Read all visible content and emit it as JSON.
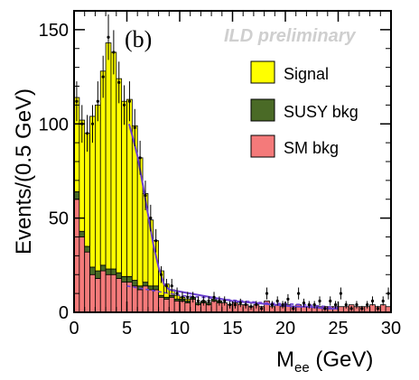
{
  "chart_data": {
    "type": "histogram",
    "panel_label": "(b)",
    "watermark": "ILD preliminary",
    "xlabel_main": "M",
    "xlabel_sub": "ee",
    "xlabel_unit": " (GeV)",
    "ylabel": "Events/(0.5 GeV)",
    "xlim": [
      0,
      30
    ],
    "ylim": [
      0,
      160
    ],
    "x_ticks": [
      0,
      5,
      10,
      15,
      20,
      25,
      30
    ],
    "x_tick_labels": [
      "0",
      "5",
      "10",
      "15",
      "20",
      "25",
      "30"
    ],
    "y_ticks": [
      0,
      50,
      100,
      150
    ],
    "y_tick_labels": [
      "0",
      "50",
      "100",
      "150"
    ],
    "bin_width": 0.5,
    "bin_starts": [
      0,
      0.5,
      1,
      1.5,
      2,
      2.5,
      3,
      3.5,
      4,
      4.5,
      5,
      5.5,
      6,
      6.5,
      7,
      7.5,
      8,
      8.5,
      9,
      9.5,
      10,
      10.5,
      11,
      11.5,
      12,
      12.5,
      13,
      13.5,
      14,
      14.5,
      15,
      15.5,
      16,
      16.5,
      17,
      17.5,
      18,
      18.5,
      19,
      19.5,
      20,
      20.5,
      21,
      21.5,
      22,
      22.5,
      23,
      23.5,
      24,
      24.5,
      25,
      25.5,
      26,
      26.5,
      27,
      27.5,
      28,
      28.5,
      29,
      29.5
    ],
    "series": [
      {
        "name": "SM bkg",
        "color": "#f47a7a",
        "values": [
          60,
          40,
          32,
          20,
          18,
          22,
          20,
          20,
          18,
          16,
          16,
          14,
          12,
          14,
          12,
          12,
          8,
          7,
          8,
          6,
          6,
          5,
          7,
          4,
          5,
          4,
          6,
          5,
          5,
          4,
          5,
          4,
          4,
          3,
          4,
          3,
          6,
          3,
          4,
          3,
          4,
          3,
          4,
          3,
          3,
          3,
          3,
          3,
          3,
          3,
          3,
          3,
          4,
          3,
          3,
          3,
          4,
          3,
          4,
          3
        ]
      },
      {
        "name": "SUSY bkg",
        "color": "#4a6a26",
        "values": [
          4,
          3,
          3,
          4,
          4,
          3,
          3,
          3,
          3,
          3,
          3,
          3,
          2,
          2,
          2,
          2,
          1,
          1,
          1,
          1,
          1,
          1,
          1,
          1,
          1,
          1,
          1,
          1,
          0,
          0,
          0,
          0,
          0,
          0,
          0,
          0,
          0,
          0,
          0,
          0,
          0,
          0,
          0,
          0,
          0,
          0,
          0,
          0,
          0,
          0,
          0,
          0,
          0,
          0,
          0,
          0,
          0,
          0,
          0,
          0
        ]
      },
      {
        "name": "Signal",
        "color": "#ffff00",
        "values": [
          50,
          59,
          60,
          80,
          88,
          103,
          120,
          115,
          103,
          93,
          94,
          82,
          68,
          47,
          35,
          24,
          13,
          7,
          3,
          2,
          1,
          1,
          0,
          0,
          0,
          0,
          0,
          0,
          0,
          0,
          0,
          0,
          0,
          0,
          0,
          0,
          0,
          0,
          0,
          0,
          0,
          0,
          0,
          0,
          0,
          0,
          0,
          0,
          0,
          0,
          0,
          0,
          0,
          0,
          0,
          0,
          0,
          0,
          0,
          0
        ]
      }
    ],
    "data_points": [
      112,
      100,
      95,
      100,
      112,
      125,
      146,
      138,
      122,
      110,
      112,
      98,
      82,
      62,
      50,
      38,
      20,
      14,
      14,
      10,
      8,
      8,
      8,
      6,
      6,
      6,
      8,
      6,
      6,
      4,
      4,
      5,
      4,
      3,
      4,
      2,
      10,
      4,
      6,
      4,
      7,
      2,
      10,
      5,
      4,
      4,
      6,
      2,
      6,
      4,
      10,
      4,
      2,
      4,
      2,
      4,
      6,
      2,
      6,
      10
    ],
    "fit_curve": {
      "name": "fit",
      "color": "#6a3fd0",
      "x": [
        5.2,
        5.5,
        6.0,
        6.5,
        7.0,
        7.5,
        8.0,
        8.5,
        9.0,
        10,
        11,
        12,
        13,
        14,
        15,
        16,
        17,
        18,
        19,
        20,
        21,
        22,
        23,
        24,
        25
      ],
      "y": [
        100,
        94,
        83,
        68,
        52,
        36,
        24,
        15,
        12,
        11,
        10,
        9,
        8,
        7,
        6,
        5.5,
        5,
        4.5,
        4,
        3.5,
        3,
        3,
        2.5,
        2,
        2
      ]
    },
    "bkg_fit_curve": {
      "name": "bkg fit",
      "color": "#6a3fd0",
      "x": [
        5,
        6,
        7,
        8,
        9,
        10,
        12,
        14,
        16,
        18,
        20,
        22,
        24,
        25
      ],
      "y": [
        14,
        13,
        12,
        11,
        10,
        9,
        8,
        7,
        6,
        5,
        4.5,
        4,
        3,
        2.5
      ]
    },
    "legend": [
      {
        "label": "Signal",
        "color": "#ffff00"
      },
      {
        "label": "SUSY bkg",
        "color": "#4a6a26"
      },
      {
        "label": "SM bkg",
        "color": "#f47a7a"
      }
    ],
    "legend_placement": "right"
  }
}
